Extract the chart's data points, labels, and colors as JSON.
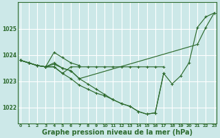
{
  "background_color": "#cce8e8",
  "grid_color": "#ffffff",
  "line_color": "#2d6a2d",
  "xlabel": "Graphe pression niveau de la mer (hPa)",
  "xlabel_fontsize": 7,
  "ylabel_labels": [
    1022,
    1023,
    1024,
    1025
  ],
  "ylim": [
    1021.4,
    1026.0
  ],
  "xlim": [
    -0.3,
    23.3
  ],
  "xticks": [
    0,
    1,
    2,
    3,
    4,
    5,
    6,
    7,
    8,
    9,
    10,
    11,
    12,
    13,
    14,
    15,
    16,
    17,
    18,
    19,
    20,
    21,
    22,
    23
  ],
  "series": [
    {
      "x": [
        0,
        1,
        2,
        3,
        4,
        5,
        6,
        7,
        8,
        9,
        10,
        11,
        12,
        13,
        14,
        15,
        16,
        17,
        18,
        19,
        20,
        21,
        22,
        23
      ],
      "y": [
        1023.8,
        1023.7,
        1023.6,
        1023.55,
        1023.55,
        1023.3,
        1023.1,
        1022.85,
        1022.7,
        1022.55,
        1022.45,
        1022.3,
        1022.15,
        1022.05,
        1021.85,
        1021.75,
        1021.8,
        1023.3,
        1022.9,
        1023.2,
        1023.7,
        1025.05,
        1025.45,
        1025.6
      ]
    },
    {
      "x": [
        0,
        1,
        2,
        3,
        4,
        5,
        6,
        7,
        8,
        9,
        10,
        11,
        12,
        13,
        14,
        15,
        16,
        17
      ],
      "y": [
        1023.8,
        1023.7,
        1023.6,
        1023.55,
        1023.55,
        1023.3,
        1023.55,
        1023.55,
        1023.55,
        1023.55,
        1023.55,
        1023.55,
        1023.55,
        1023.55,
        1023.55,
        1023.55,
        1023.55,
        1023.55
      ]
    },
    {
      "x": [
        0,
        1,
        2,
        3,
        4,
        5,
        6,
        7
      ],
      "y": [
        1023.8,
        1023.7,
        1023.6,
        1023.55,
        1024.1,
        1023.9,
        1023.7,
        1023.6
      ]
    },
    {
      "x": [
        0,
        1,
        2,
        3,
        4,
        5,
        6,
        7,
        21,
        22,
        23
      ],
      "y": [
        1023.8,
        1023.7,
        1023.6,
        1023.55,
        1023.7,
        1023.5,
        1023.4,
        1023.1,
        1024.4,
        1025.05,
        1025.6
      ]
    },
    {
      "x": [
        0,
        1,
        2,
        3,
        4,
        5,
        6,
        7,
        8,
        9,
        10,
        11,
        12,
        13,
        14,
        15,
        16,
        17
      ],
      "y": [
        1023.8,
        1023.7,
        1023.6,
        1023.55,
        1023.65,
        1023.5,
        1023.4,
        1023.1,
        1022.9,
        1022.7,
        1022.5,
        1022.3,
        1022.15,
        1022.05,
        1021.85,
        1021.75,
        1021.8,
        1023.3
      ]
    }
  ]
}
